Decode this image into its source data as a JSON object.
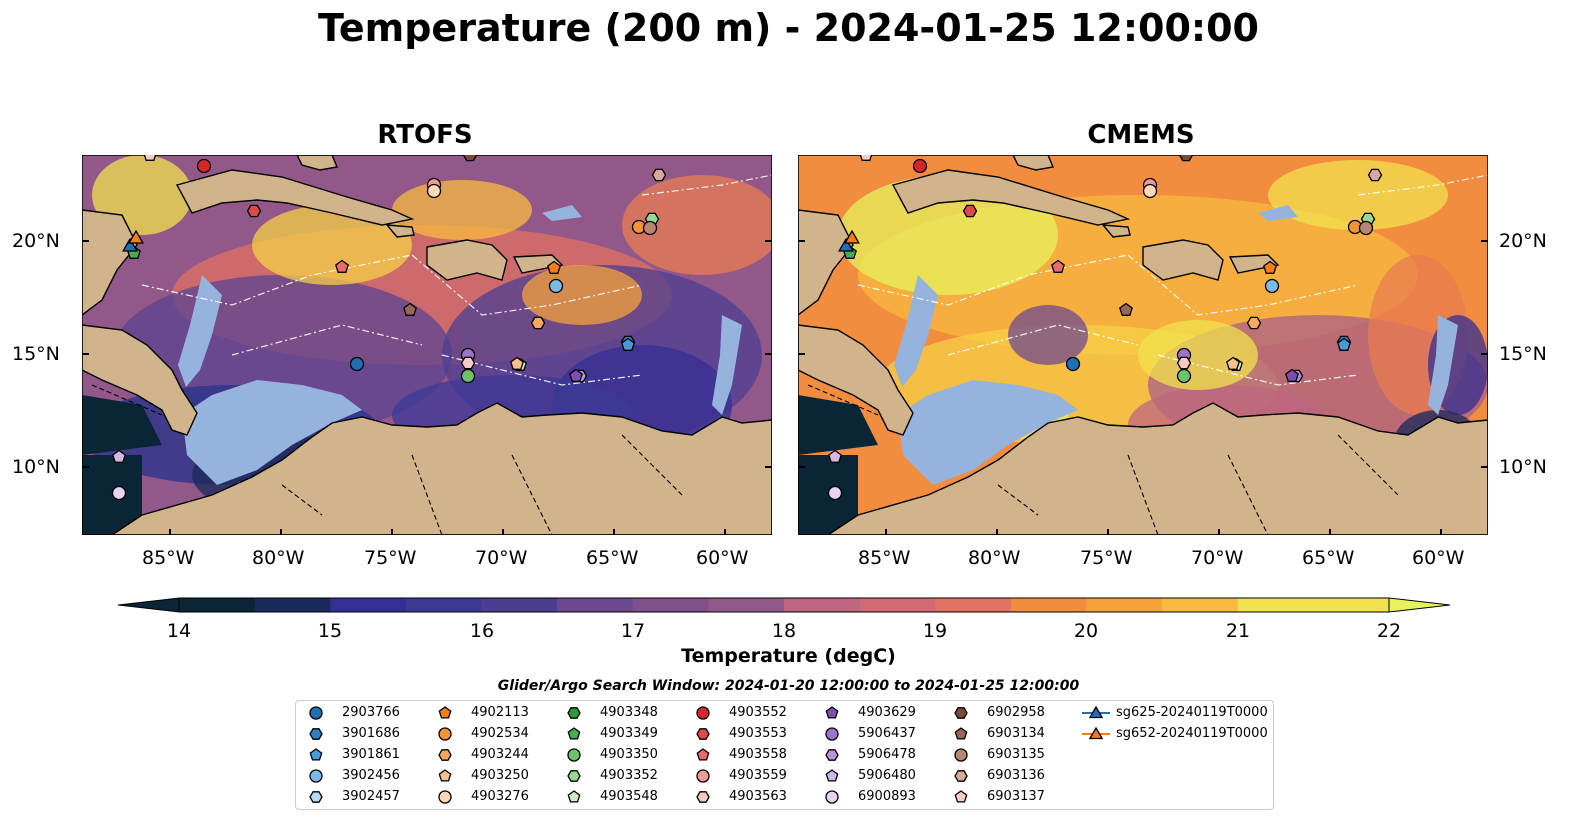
{
  "title": "Temperature (200 m) - 2024-01-25 12:00:00",
  "panels": [
    {
      "title": "RTOFS"
    },
    {
      "title": "CMEMS"
    }
  ],
  "lat_labels": [
    "20°N",
    "15°N",
    "10°N"
  ],
  "lon_labels": [
    "85°W",
    "80°W",
    "75°W",
    "70°W",
    "65°W",
    "60°W"
  ],
  "colorbar": {
    "label": "Temperature (degC)",
    "ticks": [
      "14",
      "15",
      "16",
      "17",
      "18",
      "19",
      "20",
      "21",
      "22"
    ],
    "range": [
      14,
      22
    ],
    "colors": [
      "#0a2535",
      "#1a2a5a",
      "#27318a",
      "#342f94",
      "#3e3895",
      "#4d3d91",
      "#5c4390",
      "#6d4a8f",
      "#7f508c",
      "#93588a",
      "#a95f85",
      "#bf6680",
      "#d06a73",
      "#e07262",
      "#ea7c50",
      "#f28c3e",
      "#f5a33b",
      "#f7bb3f",
      "#f6d046",
      "#f1e24e",
      "#e6f25c"
    ]
  },
  "legend": {
    "title": "Glider/Argo Search Window: 2024-01-20 12:00:00 to 2024-01-25 12:00:00",
    "items": [
      {
        "label": "2903766",
        "marker": "circle",
        "color": "#1f6fb4"
      },
      {
        "label": "3901686",
        "marker": "hexagon",
        "color": "#2e7fc0"
      },
      {
        "label": "3901861",
        "marker": "pentagon",
        "color": "#4a9ad6"
      },
      {
        "label": "3902456",
        "marker": "circle",
        "color": "#7cbbe8"
      },
      {
        "label": "3902457",
        "marker": "hexagon",
        "color": "#b6d9f2"
      },
      {
        "label": "4902113",
        "marker": "pentagon",
        "color": "#f07f1a"
      },
      {
        "label": "4902534",
        "marker": "circle",
        "color": "#f5923a"
      },
      {
        "label": "4903244",
        "marker": "hexagon",
        "color": "#f8a95e"
      },
      {
        "label": "4903250",
        "marker": "pentagon",
        "color": "#fbc08e"
      },
      {
        "label": "4903276",
        "marker": "circle",
        "color": "#fdd9b5"
      },
      {
        "label": "4903348",
        "marker": "hexagon",
        "color": "#2a9a33"
      },
      {
        "label": "4903349",
        "marker": "pentagon",
        "color": "#46ad4a"
      },
      {
        "label": "4903350",
        "marker": "circle",
        "color": "#6cc26a"
      },
      {
        "label": "4903352",
        "marker": "hexagon",
        "color": "#98d890"
      },
      {
        "label": "4903548",
        "marker": "pentagon",
        "color": "#cdeec4"
      },
      {
        "label": "4903552",
        "marker": "circle",
        "color": "#d62728"
      },
      {
        "label": "4903553",
        "marker": "hexagon",
        "color": "#dd4a4a"
      },
      {
        "label": "4903558",
        "marker": "pentagon",
        "color": "#e66b6b"
      },
      {
        "label": "4903559",
        "marker": "circle",
        "color": "#ee9a98"
      },
      {
        "label": "4903563",
        "marker": "hexagon",
        "color": "#f7c9c6"
      },
      {
        "label": "4903629",
        "marker": "pentagon",
        "color": "#7e4fb0"
      },
      {
        "label": "5906437",
        "marker": "circle",
        "color": "#9e74c8"
      },
      {
        "label": "5906478",
        "marker": "hexagon",
        "color": "#b595d6"
      },
      {
        "label": "5906480",
        "marker": "pentagon",
        "color": "#cfb7e6"
      },
      {
        "label": "6900893",
        "marker": "circle",
        "color": "#e6d4f3"
      },
      {
        "label": "6902958",
        "marker": "hexagon",
        "color": "#7b4a3c"
      },
      {
        "label": "6903134",
        "marker": "pentagon",
        "color": "#9a6656"
      },
      {
        "label": "6903135",
        "marker": "circle",
        "color": "#b98676"
      },
      {
        "label": "6903136",
        "marker": "hexagon",
        "color": "#d8a89a"
      },
      {
        "label": "6903137",
        "marker": "pentagon",
        "color": "#f3cfc5"
      },
      {
        "label": "sg625-20240119T0000",
        "marker": "triangle-line",
        "color": "#1f6fb4"
      },
      {
        "label": "sg652-20240119T0000",
        "marker": "triangle-line",
        "color": "#f07f1a"
      }
    ]
  }
}
